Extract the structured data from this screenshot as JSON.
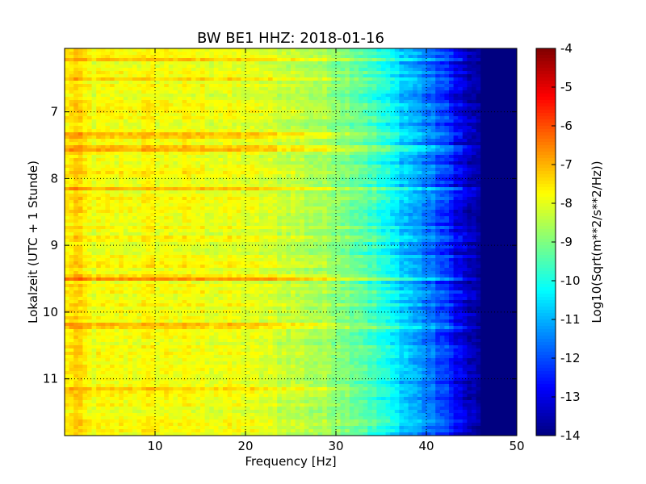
{
  "chart_data": {
    "type": "heatmap",
    "title": "BW BE1 HHZ: 2018-01-16",
    "xlabel": "Frequency [Hz]",
    "ylabel": "Lokalzeit (UTC + 1 Stunde)",
    "colorbar_label": "Log10(Sqrt(m**2/s**2/Hz))",
    "xlim": [
      0,
      50
    ],
    "ylim": [
      11.85,
      6.05
    ],
    "x_ticks": [
      "10",
      "20",
      "30",
      "40",
      "50"
    ],
    "x_tick_values": [
      10,
      20,
      30,
      40,
      50
    ],
    "y_ticks": [
      "7",
      "8",
      "9",
      "10",
      "11"
    ],
    "y_tick_values": [
      7,
      8,
      9,
      10,
      11
    ],
    "colorbar_range": [
      -14,
      -4
    ],
    "colorbar_ticks": [
      "-4",
      "-5",
      "-6",
      "-7",
      "-8",
      "-9",
      "-10",
      "-11",
      "-12",
      "-13",
      "-14"
    ],
    "colorbar_tick_values": [
      -4,
      -5,
      -6,
      -7,
      -8,
      -9,
      -10,
      -11,
      -12,
      -13,
      -14
    ],
    "colormap": "jet",
    "grid": true,
    "frequency_profile": [
      {
        "f": 0.0,
        "v": -7.8
      },
      {
        "f": 1.0,
        "v": -7.3
      },
      {
        "f": 3.0,
        "v": -7.9
      },
      {
        "f": 10.0,
        "v": -7.8
      },
      {
        "f": 20.0,
        "v": -8.0
      },
      {
        "f": 26.0,
        "v": -8.4
      },
      {
        "f": 30.0,
        "v": -8.8
      },
      {
        "f": 33.0,
        "v": -9.3
      },
      {
        "f": 36.0,
        "v": -10.3
      },
      {
        "f": 39.0,
        "v": -11.2
      },
      {
        "f": 42.0,
        "v": -12.2
      },
      {
        "f": 45.0,
        "v": -13.6
      },
      {
        "f": 47.0,
        "v": -14.0
      },
      {
        "f": 50.0,
        "v": -14.0
      }
    ],
    "bright_bands": [
      {
        "time": 6.2,
        "boost": 0.8
      },
      {
        "time": 6.5,
        "boost": 0.5
      },
      {
        "time": 7.35,
        "boost": 1.2
      },
      {
        "time": 7.55,
        "boost": 1.3
      },
      {
        "time": 7.9,
        "boost": 0.5
      },
      {
        "time": 8.15,
        "boost": 0.9
      },
      {
        "time": 8.9,
        "boost": 0.4
      },
      {
        "time": 9.3,
        "boost": 0.5
      },
      {
        "time": 9.5,
        "boost": 1.5
      },
      {
        "time": 10.2,
        "boost": 1.2
      },
      {
        "time": 10.6,
        "boost": 0.5
      },
      {
        "time": 11.15,
        "boost": 0.7
      },
      {
        "time": 11.75,
        "boost": 0.5
      }
    ]
  }
}
